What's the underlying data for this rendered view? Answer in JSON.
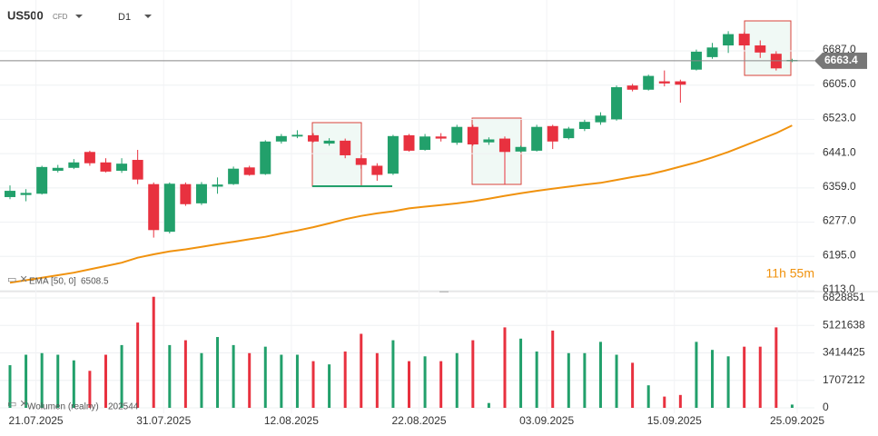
{
  "header": {
    "symbol": "US500",
    "instrument": "CFD",
    "timeframe": "D1"
  },
  "chart_data": {
    "type": "candlestick",
    "categories": [
      null,
      "21.07.2025",
      null,
      null,
      null,
      null,
      null,
      null,
      null,
      "31.07.2025",
      null,
      null,
      null,
      null,
      null,
      null,
      null,
      "12.08.2025",
      null,
      null,
      null,
      null,
      null,
      null,
      null,
      "22.08.2025",
      null,
      null,
      null,
      null,
      null,
      null,
      null,
      "03.09.2025",
      null,
      null,
      null,
      null,
      null,
      null,
      null,
      "15.09.2025",
      null,
      null,
      null,
      null,
      null,
      null,
      null,
      "25.09.2025"
    ],
    "open": [
      6337,
      6342,
      6345,
      6400,
      6407,
      6445,
      6420,
      6400,
      6426,
      6368,
      6254,
      6368,
      6322,
      6362,
      6368,
      6408,
      6392,
      6470,
      6482,
      6485,
      6465,
      6472,
      6430,
      6412,
      6393,
      6485,
      6450,
      6482,
      6467,
      6505,
      6468,
      6477,
      6446,
      6448,
      6507,
      6478,
      6500,
      6516,
      6523,
      6604,
      6594,
      6614,
      6614,
      6642,
      6672,
      6700,
      6728,
      6700,
      6680,
      6662
    ],
    "high": [
      6365,
      6356,
      6412,
      6414,
      6428,
      6448,
      6430,
      6430,
      6450,
      6372,
      6372,
      6372,
      6373,
      6384,
      6410,
      6412,
      6473,
      6488,
      6497,
      6490,
      6478,
      6477,
      6436,
      6418,
      6486,
      6488,
      6488,
      6490,
      6510,
      6510,
      6480,
      6482,
      6460,
      6510,
      6510,
      6505,
      6522,
      6540,
      6604,
      6608,
      6630,
      6640,
      6618,
      6690,
      6706,
      6734,
      6732,
      6712,
      6686,
      6668
    ],
    "low": [
      6332,
      6327,
      6343,
      6396,
      6404,
      6412,
      6396,
      6395,
      6368,
      6240,
      6250,
      6316,
      6318,
      6345,
      6366,
      6388,
      6390,
      6465,
      6478,
      6468,
      6460,
      6430,
      6405,
      6376,
      6390,
      6446,
      6448,
      6470,
      6462,
      6460,
      6462,
      6368,
      6444,
      6446,
      6452,
      6475,
      6495,
      6510,
      6520,
      6590,
      6592,
      6602,
      6563,
      6640,
      6668,
      6682,
      6690,
      6670,
      6640,
      6660
    ],
    "close": [
      6352,
      6347,
      6409,
      6407,
      6420,
      6418,
      6398,
      6417,
      6379,
      6258,
      6369,
      6320,
      6368,
      6367,
      6405,
      6390,
      6470,
      6483,
      6486,
      6470,
      6472,
      6437,
      6414,
      6390,
      6483,
      6448,
      6482,
      6477,
      6505,
      6463,
      6475,
      6445,
      6457,
      6505,
      6470,
      6501,
      6517,
      6532,
      6600,
      6594,
      6627,
      6609,
      6606,
      6685,
      6695,
      6727,
      6700,
      6683,
      6645,
      6665
    ],
    "colors": {
      "up": "#22a06b",
      "down": "#e8313f"
    },
    "ylim": [
      6113,
      6800
    ],
    "yticks": [
      {
        "value": 6113,
        "label": "6113.0"
      },
      {
        "value": 6195,
        "label": "6195.0"
      },
      {
        "value": 6277,
        "label": "6277.0"
      },
      {
        "value": 6359,
        "label": "6359.0"
      },
      {
        "value": 6441,
        "label": "6441.0"
      },
      {
        "value": 6523,
        "label": "6523.0"
      },
      {
        "value": 6605,
        "label": "6605.0"
      },
      {
        "value": 6687,
        "label": "6687.0"
      }
    ],
    "last_price": 6663.4,
    "countdown": "11h 55m",
    "ema": {
      "name": "EMA",
      "params": "[50, 0]",
      "value": 6508.5,
      "color": "#f0920e",
      "values": [
        6132,
        6138,
        6144,
        6150,
        6156,
        6164,
        6172,
        6180,
        6192,
        6200,
        6207,
        6212,
        6218,
        6224,
        6230,
        6236,
        6242,
        6250,
        6257,
        6265,
        6274,
        6284,
        6292,
        6298,
        6303,
        6310,
        6314,
        6318,
        6322,
        6327,
        6333,
        6340,
        6346,
        6352,
        6357,
        6362,
        6367,
        6371,
        6378,
        6385,
        6391,
        6400,
        6410,
        6420,
        6432,
        6445,
        6460,
        6475,
        6490,
        6508.5
      ]
    },
    "volume": {
      "name": "Wolumen (realny)",
      "last": 202544,
      "values": [
        2650000,
        3300000,
        3400000,
        3300000,
        2950000,
        2300000,
        3300000,
        3900000,
        5300000,
        6900000,
        3900000,
        4200000,
        3400000,
        4400000,
        3900000,
        3400000,
        3800000,
        3300000,
        3300000,
        2900000,
        2700000,
        3500000,
        4600000,
        3400000,
        4200000,
        2900000,
        3200000,
        2900000,
        3400000,
        4200000,
        300000,
        5000000,
        4300000,
        3500000,
        4800000,
        3400000,
        3400000,
        4100000,
        3300000,
        2800000,
        1400000,
        700000,
        800000,
        4100000,
        3600000,
        3200000,
        3800000,
        3800000,
        5000000,
        202544
      ],
      "ylim": [
        0,
        6828851
      ],
      "yticks": [
        0,
        1707212,
        3414425,
        5121638,
        6828851
      ]
    }
  }
}
